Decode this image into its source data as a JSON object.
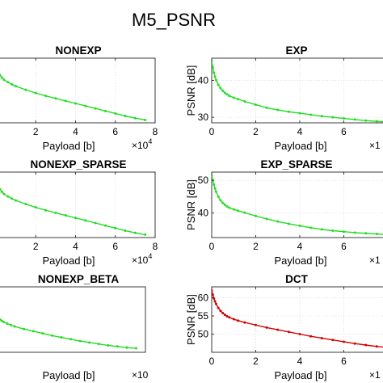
{
  "figure_title": "M5_PSNR",
  "colors": {
    "green": "#22dd22",
    "red": "#d40000",
    "axis": "#262626",
    "grid": "#d9d9d9"
  },
  "chart_data": [
    {
      "type": "line",
      "title": "NONEXP",
      "xlabel": "Payload [b]",
      "ylabel": "",
      "x_exponent": "×10",
      "x_exponent_power": "4",
      "xlim": [
        0,
        80000
      ],
      "ylim": [
        29,
        47
      ],
      "xticks": [
        2,
        4,
        6,
        8
      ],
      "xtick_labels": [
        "2",
        "4",
        "6",
        "8"
      ],
      "yticks": [],
      "ytick_labels": [],
      "grid": true,
      "series": [
        {
          "color": "#22dd22",
          "x": [
            0,
            1000,
            2000,
            3000,
            4000,
            6000,
            8000,
            10000,
            15000,
            20000,
            25000,
            30000,
            35000,
            40000,
            45000,
            50000,
            55000,
            60000,
            65000,
            70000,
            75000
          ],
          "y": [
            44,
            43.1,
            42.3,
            41.6,
            41.0,
            40.3,
            39.7,
            39.2,
            38.2,
            37.3,
            36.5,
            35.8,
            35.1,
            34.4,
            33.7,
            33.0,
            32.3,
            31.6,
            30.9,
            30.3,
            29.8
          ]
        }
      ]
    },
    {
      "type": "line",
      "title": "EXP",
      "xlabel": "Payload [b]",
      "ylabel": "PSNR [dB]",
      "x_exponent": "×1",
      "x_exponent_power": "",
      "xlim": [
        0,
        80000
      ],
      "ylim": [
        28.5,
        46
      ],
      "xticks": [
        0,
        2,
        4,
        6
      ],
      "xtick_labels": [
        "0",
        "2",
        "4",
        "6"
      ],
      "yticks": [
        30,
        40
      ],
      "ytick_labels": [
        "30",
        "40"
      ],
      "grid": true,
      "series": [
        {
          "color": "#22dd22",
          "x": [
            0,
            500,
            1000,
            1500,
            2000,
            3000,
            4000,
            5000,
            6000,
            7000,
            8000,
            10000,
            12000,
            15000,
            20000,
            25000,
            30000,
            35000,
            40000,
            45000,
            50000,
            55000,
            60000,
            65000,
            70000,
            75000,
            80000
          ],
          "y": [
            45.2,
            43.5,
            42.1,
            41.0,
            40.1,
            38.8,
            37.9,
            37.2,
            36.6,
            36.2,
            35.8,
            35.3,
            34.9,
            34.3,
            33.4,
            32.6,
            32.0,
            31.5,
            31.1,
            30.7,
            30.3,
            30.0,
            29.7,
            29.4,
            29.1,
            28.9,
            28.7
          ]
        }
      ]
    },
    {
      "type": "line",
      "title": "NONEXP_SPARSE",
      "xlabel": "Payload [b]",
      "ylabel": "",
      "x_exponent": "×10",
      "x_exponent_power": "4",
      "xlim": [
        0,
        80000
      ],
      "ylim": [
        29,
        47
      ],
      "xticks": [
        2,
        4,
        6,
        8
      ],
      "xtick_labels": [
        "2",
        "4",
        "6",
        "8"
      ],
      "yticks": [],
      "ytick_labels": [],
      "grid": true,
      "series": [
        {
          "color": "#22dd22",
          "x": [
            0,
            1000,
            2000,
            3000,
            4000,
            6000,
            8000,
            10000,
            15000,
            20000,
            25000,
            30000,
            35000,
            40000,
            45000,
            50000,
            55000,
            60000,
            65000,
            70000,
            75000
          ],
          "y": [
            44,
            43.1,
            42.3,
            41.6,
            41.0,
            40.3,
            39.7,
            39.2,
            38.2,
            37.3,
            36.5,
            35.8,
            35.1,
            34.4,
            33.7,
            33.0,
            32.3,
            31.6,
            30.9,
            30.3,
            29.8
          ]
        }
      ]
    },
    {
      "type": "line",
      "title": "EXP_SPARSE",
      "xlabel": "Payload [b]",
      "ylabel": "PSNR [dB]",
      "x_exponent": "×1",
      "x_exponent_power": "",
      "xlim": [
        0,
        80000
      ],
      "ylim": [
        32.5,
        52.5
      ],
      "xticks": [
        0,
        2,
        4,
        6
      ],
      "xtick_labels": [
        "0",
        "2",
        "4",
        "6"
      ],
      "yticks": [
        40,
        50
      ],
      "ytick_labels": [
        "40",
        "50"
      ],
      "grid": true,
      "series": [
        {
          "color": "#22dd22",
          "x": [
            0,
            500,
            1000,
            1500,
            2000,
            3000,
            4000,
            5000,
            6000,
            7000,
            8000,
            10000,
            12000,
            15000,
            20000,
            25000,
            30000,
            35000,
            40000,
            45000,
            50000,
            55000,
            60000,
            65000,
            70000,
            75000,
            80000
          ],
          "y": [
            51.5,
            50.0,
            48.7,
            47.5,
            46.5,
            45.0,
            43.9,
            43.1,
            42.5,
            42.0,
            41.6,
            41.1,
            40.7,
            40.1,
            39.1,
            38.2,
            37.4,
            36.7,
            36.1,
            35.5,
            35.0,
            34.6,
            34.3,
            34.0,
            33.8,
            33.6,
            33.4
          ]
        }
      ]
    },
    {
      "type": "line",
      "title": "NONEXP_BETA",
      "xlabel": "Payload [b]",
      "ylabel": "",
      "x_exponent": "×10",
      "x_exponent_power": "",
      "xlim": [
        0,
        80000
      ],
      "ylim": [
        29,
        47
      ],
      "xticks": [],
      "xtick_labels": [],
      "yticks": [],
      "ytick_labels": [],
      "grid": true,
      "series": [
        {
          "color": "#22dd22",
          "x": [
            0,
            1000,
            2000,
            3000,
            4000,
            6000,
            8000,
            10000,
            15000,
            20000,
            25000,
            30000,
            35000,
            40000,
            45000,
            50000,
            55000,
            60000,
            65000,
            70000,
            75000
          ],
          "y": [
            39,
            38.5,
            38.1,
            37.7,
            37.4,
            36.9,
            36.5,
            36.1,
            35.4,
            34.8,
            34.2,
            33.6,
            33.1,
            32.6,
            32.1,
            31.7,
            31.3,
            30.9,
            30.6,
            30.3,
            30.1
          ]
        }
      ]
    },
    {
      "type": "line",
      "title": "DCT",
      "xlabel": "Payload [b]",
      "ylabel": "PSNR [dB]",
      "x_exponent": "×1",
      "x_exponent_power": "",
      "xlim": [
        0,
        80000
      ],
      "ylim": [
        45,
        63
      ],
      "xticks": [
        0,
        2,
        4,
        6
      ],
      "xtick_labels": [
        "0",
        "2",
        "4",
        "6"
      ],
      "yticks": [
        50,
        55,
        60
      ],
      "ytick_labels": [
        "50",
        "55",
        "60"
      ],
      "grid": true,
      "series": [
        {
          "color": "#d40000",
          "x": [
            0,
            500,
            1000,
            1500,
            2000,
            3000,
            4000,
            5000,
            6000,
            7000,
            8000,
            10000,
            12000,
            15000,
            20000,
            25000,
            30000,
            35000,
            40000,
            45000,
            50000,
            55000,
            60000,
            65000,
            70000,
            75000,
            80000
          ],
          "y": [
            62.0,
            60.8,
            59.8,
            59.0,
            58.3,
            57.2,
            56.4,
            55.8,
            55.3,
            54.9,
            54.6,
            54.1,
            53.7,
            53.2,
            52.5,
            51.8,
            51.2,
            50.6,
            50.0,
            49.4,
            48.9,
            48.4,
            47.9,
            47.4,
            47.0,
            46.6,
            46.3
          ]
        }
      ]
    }
  ]
}
